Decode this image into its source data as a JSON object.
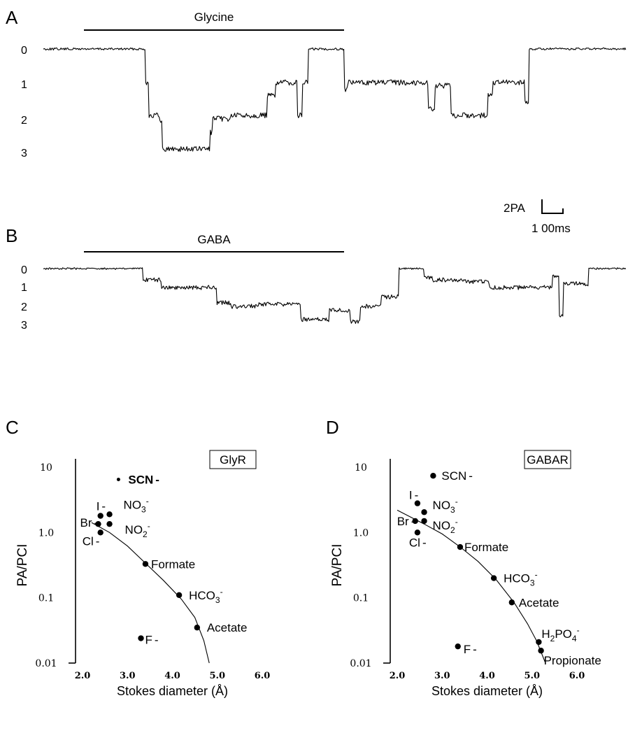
{
  "panels": {
    "A": "A",
    "B": "B",
    "C": "C",
    "D": "D"
  },
  "traces": {
    "A": {
      "agonist": "Glycine",
      "levels": [
        "0",
        "1",
        "2",
        "3"
      ]
    },
    "B": {
      "agonist": "GABA",
      "levels": [
        "0",
        "1",
        "2",
        "3"
      ]
    },
    "scalebar": {
      "current": "2PA",
      "time": "1 00ms"
    }
  },
  "chart_data": [
    {
      "type": "scatter",
      "panel": "C",
      "box_label": "GlyR",
      "xlabel": "Stokes diameter (Å)",
      "ylabel": "PA/PCI",
      "x_scale": "linear",
      "y_scale": "log",
      "xlim": [
        2.0,
        6.0
      ],
      "ylim": [
        0.01,
        10
      ],
      "x_ticks": [
        "2.0",
        "3.0",
        "4.0",
        "5.0",
        "6.0"
      ],
      "y_ticks": [
        "10",
        "1.0",
        "0.1",
        "0.01"
      ],
      "points": [
        {
          "ion": "SCN",
          "charge": "-",
          "x": 2.8,
          "y": 6.5
        },
        {
          "ion": "I",
          "charge": "-",
          "x": 2.4,
          "y": 1.8
        },
        {
          "ion": "NO3",
          "charge": "-",
          "x": 2.6,
          "y": 1.9
        },
        {
          "ion": "Br",
          "charge": "-",
          "x": 2.35,
          "y": 1.35
        },
        {
          "ion": "NO2",
          "charge": "-",
          "x": 2.6,
          "y": 1.35
        },
        {
          "ion": "Cl",
          "charge": "-",
          "x": 2.4,
          "y": 1.0
        },
        {
          "ion": "Formate",
          "charge": "",
          "x": 3.4,
          "y": 0.33
        },
        {
          "ion": "HCO3",
          "charge": "-",
          "x": 4.15,
          "y": 0.11
        },
        {
          "ion": "Acetate",
          "charge": "",
          "x": 4.55,
          "y": 0.035
        },
        {
          "ion": "F",
          "charge": "-",
          "x": 3.3,
          "y": 0.024
        }
      ],
      "fit_curve": [
        [
          2.2,
          1.42
        ],
        [
          2.6,
          1.0
        ],
        [
          3.0,
          0.62
        ],
        [
          3.4,
          0.34
        ],
        [
          3.8,
          0.185
        ],
        [
          4.2,
          0.095
        ],
        [
          4.5,
          0.05
        ],
        [
          4.7,
          0.022
        ],
        [
          4.82,
          0.01
        ]
      ]
    },
    {
      "type": "scatter",
      "panel": "D",
      "box_label": "GABAR",
      "xlabel": "Stokes diameter (Å)",
      "ylabel": "PA/PCI",
      "x_scale": "linear",
      "y_scale": "log",
      "xlim": [
        2.0,
        6.0
      ],
      "ylim": [
        0.01,
        10
      ],
      "x_ticks": [
        "2.0",
        "3.0",
        "4.0",
        "5.0",
        "6.0"
      ],
      "y_ticks": [
        "10",
        "1.0",
        "0.1",
        "0.01"
      ],
      "points": [
        {
          "ion": "SCN",
          "charge": "-",
          "x": 2.8,
          "y": 7.4
        },
        {
          "ion": "I",
          "charge": "-",
          "x": 2.45,
          "y": 2.8
        },
        {
          "ion": "NO3",
          "charge": "-",
          "x": 2.6,
          "y": 2.05
        },
        {
          "ion": "Br",
          "charge": "-",
          "x": 2.4,
          "y": 1.5
        },
        {
          "ion": "NO2",
          "charge": "-",
          "x": 2.6,
          "y": 1.5
        },
        {
          "ion": "Cl",
          "charge": "-",
          "x": 2.45,
          "y": 1.0
        },
        {
          "ion": "Formate",
          "charge": "",
          "x": 3.4,
          "y": 0.6
        },
        {
          "ion": "HCO3",
          "charge": "-",
          "x": 4.15,
          "y": 0.2
        },
        {
          "ion": "Acetate",
          "charge": "",
          "x": 4.55,
          "y": 0.085
        },
        {
          "ion": "H2PO4",
          "charge": "-",
          "x": 5.15,
          "y": 0.021
        },
        {
          "ion": "Propionate",
          "charge": "",
          "x": 5.2,
          "y": 0.0155
        },
        {
          "ion": "F",
          "charge": "-",
          "x": 3.35,
          "y": 0.018
        }
      ],
      "fit_curve": [
        [
          2.0,
          2.2
        ],
        [
          2.6,
          1.35
        ],
        [
          3.0,
          0.95
        ],
        [
          3.4,
          0.6
        ],
        [
          3.8,
          0.36
        ],
        [
          4.2,
          0.19
        ],
        [
          4.6,
          0.085
        ],
        [
          4.9,
          0.04
        ],
        [
          5.1,
          0.022
        ],
        [
          5.3,
          0.01
        ]
      ]
    }
  ]
}
